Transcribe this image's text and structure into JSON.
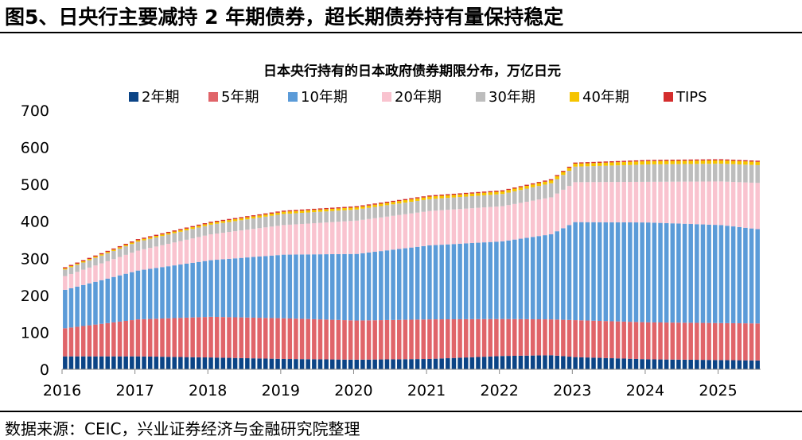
{
  "figure": {
    "title": "图5、日央行主要减持 2 年期债券，超长期债券持有量保持稳定",
    "source": "数据来源：CEIC，兴业证券经济与金融研究院整理"
  },
  "colors": {
    "2年期": "#0b4486",
    "5年期": "#e06469",
    "10年期": "#5b9bd8",
    "20年期": "#f9c3cf",
    "30年期": "#bdbdbd",
    "40年期": "#f5c400",
    "TIPS": "#d42d2d"
  },
  "chart_data": {
    "type": "bar",
    "stacked": true,
    "title": "日本央行持有的日本政府债券期限分布，万亿日元",
    "xlabel": "",
    "ylabel": "",
    "ylim": [
      0,
      700
    ],
    "yticks": [
      "0",
      "100",
      "200",
      "300",
      "400",
      "500",
      "600",
      "700"
    ],
    "xtick_labels": [
      "2016",
      "2017",
      "2018",
      "2019",
      "2020",
      "2021",
      "2022",
      "2023",
      "2024",
      "2025"
    ],
    "legend": [
      "2年期",
      "5年期",
      "10年期",
      "20年期",
      "30年期",
      "40年期",
      "TIPS"
    ],
    "legend_position": "top",
    "start": "2016-01",
    "frequency": "monthly",
    "series": [
      {
        "name": "2年期",
        "anchors": [
          [
            0,
            35
          ],
          [
            12,
            35
          ],
          [
            24,
            32
          ],
          [
            36,
            28
          ],
          [
            48,
            26
          ],
          [
            60,
            28
          ],
          [
            72,
            36
          ],
          [
            80,
            38
          ],
          [
            84,
            33
          ],
          [
            96,
            27
          ],
          [
            108,
            25
          ],
          [
            114,
            24
          ]
        ]
      },
      {
        "name": "5年期",
        "anchors": [
          [
            0,
            76
          ],
          [
            12,
            100
          ],
          [
            24,
            110
          ],
          [
            36,
            110
          ],
          [
            48,
            106
          ],
          [
            60,
            107
          ],
          [
            72,
            100
          ],
          [
            80,
            97
          ],
          [
            84,
            100
          ],
          [
            96,
            100
          ],
          [
            108,
            100
          ],
          [
            114,
            100
          ]
        ]
      },
      {
        "name": "10年期",
        "anchors": [
          [
            0,
            104
          ],
          [
            12,
            132
          ],
          [
            24,
            153
          ],
          [
            36,
            172
          ],
          [
            48,
            180
          ],
          [
            60,
            200
          ],
          [
            72,
            210
          ],
          [
            80,
            230
          ],
          [
            84,
            265
          ],
          [
            96,
            270
          ],
          [
            108,
            265
          ],
          [
            114,
            255
          ]
        ]
      },
      {
        "name": "20年期",
        "anchors": [
          [
            0,
            37
          ],
          [
            12,
            54
          ],
          [
            24,
            70
          ],
          [
            36,
            80
          ],
          [
            48,
            90
          ],
          [
            60,
            93
          ],
          [
            72,
            95
          ],
          [
            80,
            100
          ],
          [
            84,
            108
          ],
          [
            96,
            110
          ],
          [
            108,
            118
          ],
          [
            114,
            125
          ]
        ]
      },
      {
        "name": "30年期",
        "anchors": [
          [
            0,
            18
          ],
          [
            12,
            24
          ],
          [
            24,
            26
          ],
          [
            36,
            30
          ],
          [
            48,
            30
          ],
          [
            60,
            32
          ],
          [
            72,
            33
          ],
          [
            80,
            38
          ],
          [
            84,
            42
          ],
          [
            96,
            47
          ],
          [
            108,
            48
          ],
          [
            114,
            48
          ]
        ]
      },
      {
        "name": "40年期",
        "anchors": [
          [
            0,
            3
          ],
          [
            12,
            4
          ],
          [
            24,
            5
          ],
          [
            36,
            6
          ],
          [
            48,
            6
          ],
          [
            60,
            7
          ],
          [
            72,
            7
          ],
          [
            80,
            8
          ],
          [
            84,
            8
          ],
          [
            96,
            9
          ],
          [
            108,
            9
          ],
          [
            114,
            9
          ]
        ]
      },
      {
        "name": "TIPS",
        "anchors": [
          [
            0,
            3
          ],
          [
            12,
            3
          ],
          [
            24,
            3
          ],
          [
            36,
            3
          ],
          [
            48,
            3
          ],
          [
            60,
            3
          ],
          [
            72,
            3
          ],
          [
            80,
            3
          ],
          [
            84,
            3
          ],
          [
            96,
            3
          ],
          [
            108,
            3
          ],
          [
            114,
            3
          ]
        ]
      }
    ],
    "month_count": 115
  }
}
